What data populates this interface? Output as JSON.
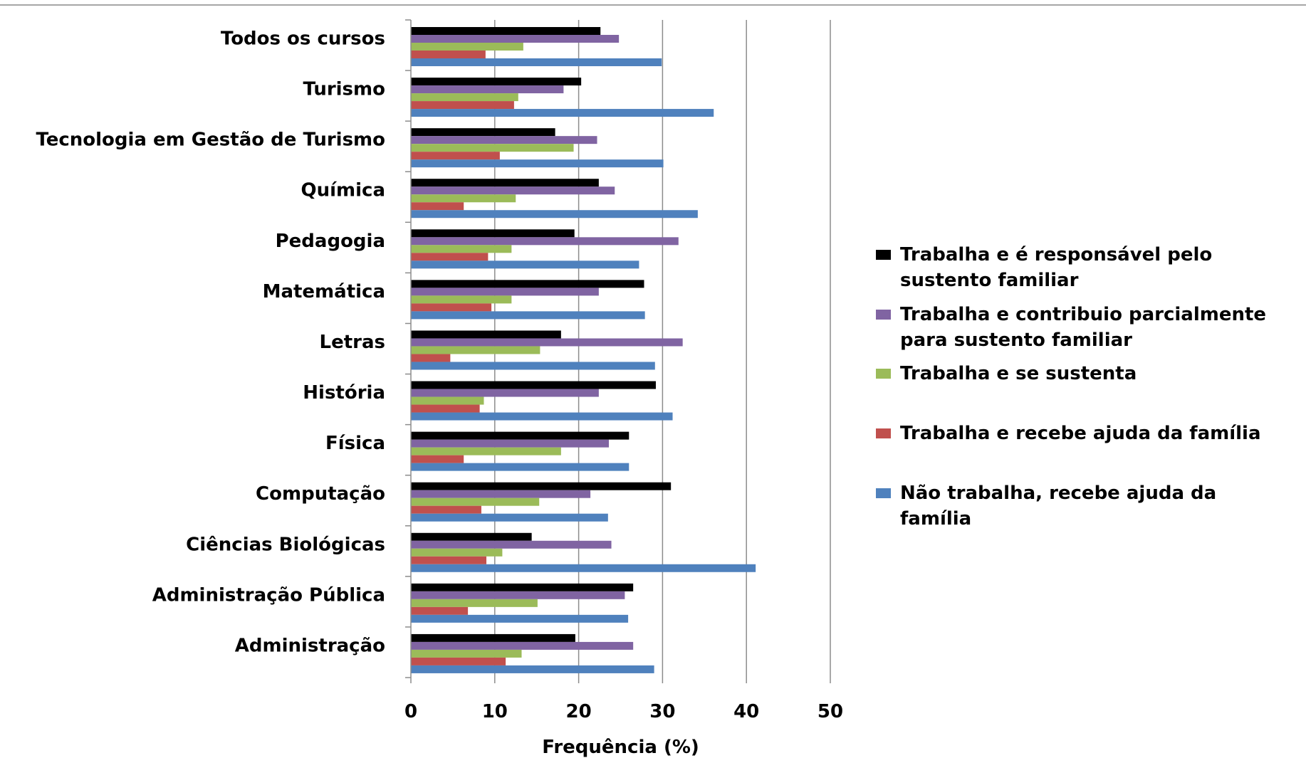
{
  "chart_data": {
    "type": "bar",
    "orientation": "horizontal",
    "title": "",
    "xlabel": "Frequência (%)",
    "ylabel": "",
    "xlim": [
      0,
      50
    ],
    "xticks": [
      0,
      10,
      20,
      30,
      40,
      50
    ],
    "grid": "vertical",
    "legend_position": "right",
    "categories": [
      "Todos os cursos",
      "Turismo",
      "Tecnologia em Gestão de Turismo",
      "Química",
      "Pedagogia",
      "Matemática",
      "Letras",
      "História",
      "Física",
      "Computação",
      "Ciências Biológicas",
      "Administração Pública",
      "Administração"
    ],
    "series": [
      {
        "name": "Trabalha e é responsável pelo sustento familiar",
        "legend_lines": [
          "Trabalha e é responsável pelo",
          "sustento familiar"
        ],
        "color": "#000000",
        "values": [
          22.6,
          20.3,
          17.2,
          22.4,
          19.5,
          27.8,
          17.9,
          29.2,
          26.0,
          31.0,
          14.4,
          26.5,
          19.6
        ]
      },
      {
        "name": "Trabalha e contribuio parcialmente para sustento familiar",
        "legend_lines": [
          "Trabalha e contribuio parcialmente",
          "para sustento familiar"
        ],
        "color": "#8064A2",
        "values": [
          24.8,
          18.2,
          22.2,
          24.3,
          31.9,
          22.4,
          32.4,
          22.4,
          23.6,
          21.4,
          23.9,
          25.5,
          26.5
        ]
      },
      {
        "name": "Trabalha e se sustenta",
        "legend_lines": [
          "Trabalha e se sustenta"
        ],
        "color": "#9BBB59",
        "values": [
          13.4,
          12.8,
          19.4,
          12.5,
          12.0,
          12.0,
          15.4,
          8.7,
          17.9,
          15.3,
          10.9,
          15.1,
          13.2
        ]
      },
      {
        "name": "Trabalha e recebe ajuda da família",
        "legend_lines": [
          "Trabalha e recebe ajuda da família"
        ],
        "color": "#C0504D",
        "values": [
          8.9,
          12.3,
          10.6,
          6.3,
          9.2,
          9.6,
          4.7,
          8.2,
          6.3,
          8.4,
          9.0,
          6.8,
          11.3
        ]
      },
      {
        "name": "Não trabalha, recebe ajuda da família",
        "legend_lines": [
          "Não trabalha, recebe ajuda da",
          "família"
        ],
        "color": "#4F81BD",
        "values": [
          29.9,
          36.1,
          30.1,
          34.2,
          27.2,
          27.9,
          29.1,
          31.2,
          26.0,
          23.5,
          41.1,
          25.9,
          29.0
        ]
      }
    ]
  }
}
